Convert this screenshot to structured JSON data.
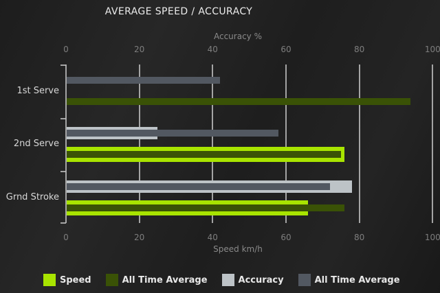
{
  "title": "AVERAGE SPEED / ACCURACY",
  "chart_data": {
    "type": "bar",
    "orientation": "horizontal",
    "title": "AVERAGE SPEED / ACCURACY",
    "categories": [
      "1st Serve",
      "2nd Serve",
      "Grnd Stroke"
    ],
    "axes": {
      "top": {
        "label": "Accuracy %",
        "ticks": [
          0,
          20,
          40,
          60,
          80,
          100
        ],
        "range": [
          0,
          100
        ]
      },
      "bottom": {
        "label": "Speed km/h",
        "ticks": [
          0,
          20,
          40,
          60,
          80,
          100
        ],
        "range": [
          0,
          100
        ]
      }
    },
    "series": [
      {
        "name": "Speed",
        "axis": "bottom",
        "color": "#a8e400",
        "values": [
          null,
          76,
          66
        ]
      },
      {
        "name": "All Time Average",
        "axis": "bottom",
        "color": "#3a5206",
        "values": [
          94,
          75,
          76
        ]
      },
      {
        "name": "Accuracy",
        "axis": "top",
        "color": "#bdc3c7",
        "values": [
          null,
          25,
          78
        ]
      },
      {
        "name": "All Time Average",
        "axis": "top",
        "color": "#525861",
        "values": [
          42,
          58,
          72
        ]
      }
    ],
    "legend": [
      {
        "label": "Speed",
        "color": "#a8e400"
      },
      {
        "label": "All Time Average",
        "color": "#3a5206"
      },
      {
        "label": "Accuracy",
        "color": "#bdc3c7"
      },
      {
        "label": "All Time Average",
        "color": "#525861"
      }
    ],
    "grid": true,
    "legend_position": "bottom",
    "colors": {
      "background": "#212121",
      "gridline": "#bcbcbc",
      "tick_text": "#7e7e7e",
      "category_text": "#d8d8d8",
      "title_text": "#ececec"
    }
  }
}
